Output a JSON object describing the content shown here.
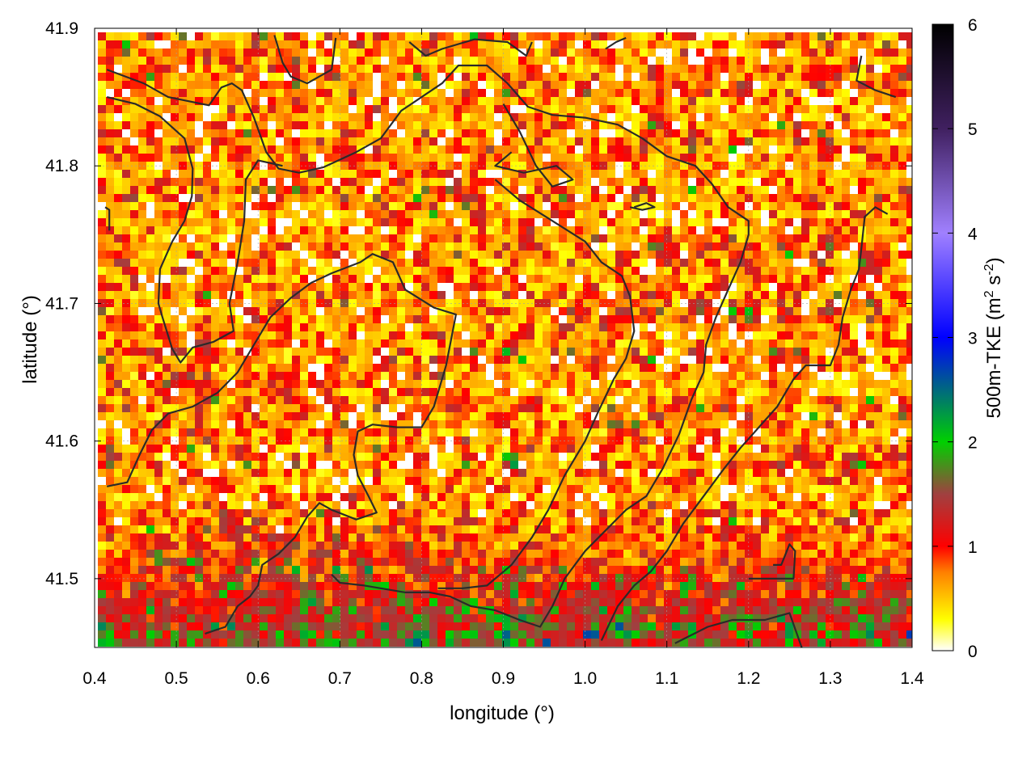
{
  "chart_data": {
    "type": "heatmap",
    "title": "",
    "xlabel": "longitude (°)",
    "ylabel": "latitude (°)",
    "xlim": [
      0.4,
      1.4
    ],
    "ylim": [
      41.45,
      41.9
    ],
    "x_ticks": [
      "0.4",
      "0.5",
      "0.6",
      "0.7",
      "0.8",
      "0.9",
      "1.0",
      "1.1",
      "1.2",
      "1.3",
      "1.4"
    ],
    "y_ticks": [
      "41.5",
      "41.6",
      "41.7",
      "41.8",
      "41.9"
    ],
    "grid": true,
    "colorbar": {
      "label_main": "500m-TKE (m",
      "label_sup1": "2",
      "label_mid": " s",
      "label_sup2": "-2",
      "label_end": ")",
      "range": [
        0,
        6
      ],
      "ticks": [
        "0",
        "1",
        "2",
        "3",
        "4",
        "5",
        "6"
      ],
      "palette": [
        {
          "v": 0.0,
          "c": "#ffffff"
        },
        {
          "v": 0.3,
          "c": "#ffff00"
        },
        {
          "v": 0.75,
          "c": "#ff8000"
        },
        {
          "v": 1.0,
          "c": "#ff0000"
        },
        {
          "v": 1.5,
          "c": "#a04040"
        },
        {
          "v": 2.0,
          "c": "#00d000"
        },
        {
          "v": 3.0,
          "c": "#0000ff"
        },
        {
          "v": 4.0,
          "c": "#a080ff"
        },
        {
          "v": 5.0,
          "c": "#402060"
        },
        {
          "v": 6.0,
          "c": "#000000"
        }
      ]
    },
    "contours": [
      [
        [
          0.415,
          41.87
        ],
        [
          0.46,
          41.86
        ],
        [
          0.49,
          41.85
        ],
        [
          0.54,
          41.844
        ],
        [
          0.555,
          41.857
        ],
        [
          0.568,
          41.86
        ],
        [
          0.58,
          41.855
        ],
        [
          0.595,
          41.835
        ],
        [
          0.61,
          41.81
        ],
        [
          0.625,
          41.798
        ],
        [
          0.65,
          41.795
        ],
        [
          0.68,
          41.799
        ],
        [
          0.72,
          41.81
        ],
        [
          0.75,
          41.82
        ],
        [
          0.775,
          41.84
        ],
        [
          0.8,
          41.85
        ],
        [
          0.825,
          41.86
        ],
        [
          0.845,
          41.873
        ],
        [
          0.88,
          41.873
        ],
        [
          0.905,
          41.86
        ],
        [
          0.93,
          41.843
        ],
        [
          0.96,
          41.837
        ],
        [
          1.0,
          41.835
        ],
        [
          1.04,
          41.83
        ],
        [
          1.07,
          41.82
        ],
        [
          1.1,
          41.807
        ],
        [
          1.135,
          41.8
        ],
        [
          1.155,
          41.787
        ],
        [
          1.175,
          41.77
        ],
        [
          1.2,
          41.76
        ],
        [
          1.2,
          41.75
        ],
        [
          1.19,
          41.73
        ],
        [
          1.175,
          41.71
        ],
        [
          1.16,
          41.69
        ],
        [
          1.148,
          41.67
        ],
        [
          1.145,
          41.65
        ],
        [
          1.13,
          41.63
        ],
        [
          1.115,
          41.605
        ],
        [
          1.095,
          41.58
        ],
        [
          1.075,
          41.56
        ],
        [
          1.05,
          41.55
        ],
        [
          1.025,
          41.535
        ],
        [
          1.0,
          41.52
        ],
        [
          0.975,
          41.5
        ],
        [
          0.96,
          41.48
        ],
        [
          0.945,
          41.465
        ],
        [
          0.92,
          41.47
        ],
        [
          0.89,
          41.477
        ],
        [
          0.86,
          41.48
        ],
        [
          0.835,
          41.487
        ],
        [
          0.81,
          41.49
        ],
        [
          0.78,
          41.49
        ],
        [
          0.73,
          41.495
        ],
        [
          0.7,
          41.497
        ],
        [
          0.69,
          41.503
        ]
      ],
      [
        [
          0.415,
          41.85
        ],
        [
          0.45,
          41.845
        ],
        [
          0.48,
          41.836
        ],
        [
          0.51,
          41.82
        ],
        [
          0.52,
          41.798
        ],
        [
          0.519,
          41.778
        ],
        [
          0.51,
          41.76
        ],
        [
          0.495,
          41.745
        ],
        [
          0.48,
          41.725
        ],
        [
          0.478,
          41.7
        ],
        [
          0.483,
          41.69
        ],
        [
          0.495,
          41.667
        ],
        [
          0.505,
          41.657
        ],
        [
          0.52,
          41.668
        ],
        [
          0.545,
          41.672
        ],
        [
          0.57,
          41.68
        ],
        [
          0.565,
          41.7
        ],
        [
          0.575,
          41.73
        ],
        [
          0.583,
          41.76
        ],
        [
          0.585,
          41.79
        ],
        [
          0.6,
          41.804
        ],
        [
          0.63,
          41.8
        ]
      ],
      [
        [
          0.415,
          41.567
        ],
        [
          0.44,
          41.57
        ],
        [
          0.455,
          41.59
        ],
        [
          0.47,
          41.608
        ],
        [
          0.49,
          41.62
        ],
        [
          0.52,
          41.625
        ],
        [
          0.55,
          41.635
        ],
        [
          0.575,
          41.65
        ],
        [
          0.595,
          41.67
        ],
        [
          0.615,
          41.69
        ],
        [
          0.64,
          41.704
        ],
        [
          0.665,
          41.715
        ],
        [
          0.69,
          41.722
        ],
        [
          0.725,
          41.73
        ],
        [
          0.74,
          41.736
        ],
        [
          0.765,
          41.73
        ],
        [
          0.78,
          41.71
        ],
        [
          0.815,
          41.697
        ],
        [
          0.842,
          41.692
        ],
        [
          0.83,
          41.655
        ],
        [
          0.815,
          41.625
        ],
        [
          0.8,
          41.61
        ],
        [
          0.77,
          41.61
        ],
        [
          0.74,
          41.612
        ],
        [
          0.722,
          41.607
        ],
        [
          0.717,
          41.59
        ],
        [
          0.722,
          41.575
        ],
        [
          0.735,
          41.56
        ],
        [
          0.745,
          41.548
        ],
        [
          0.72,
          41.543
        ],
        [
          0.69,
          41.55
        ],
        [
          0.675,
          41.555
        ],
        [
          0.66,
          41.545
        ],
        [
          0.645,
          41.53
        ],
        [
          0.625,
          41.518
        ],
        [
          0.605,
          41.51
        ],
        [
          0.6,
          41.495
        ],
        [
          0.59,
          41.487
        ],
        [
          0.575,
          41.48
        ],
        [
          0.56,
          41.465
        ],
        [
          0.535,
          41.46
        ]
      ],
      [
        [
          0.62,
          41.895
        ],
        [
          0.63,
          41.875
        ],
        [
          0.64,
          41.865
        ],
        [
          0.66,
          41.86
        ],
        [
          0.69,
          41.87
        ],
        [
          0.695,
          41.893
        ]
      ],
      [
        [
          0.785,
          41.89
        ],
        [
          0.805,
          41.88
        ],
        [
          0.825,
          41.885
        ],
        [
          0.865,
          41.892
        ],
        [
          0.905,
          41.89
        ],
        [
          0.928,
          41.88
        ],
        [
          0.935,
          41.89
        ]
      ],
      [
        [
          0.9,
          41.845
        ],
        [
          0.92,
          41.825
        ],
        [
          0.94,
          41.8
        ],
        [
          0.96,
          41.785
        ],
        [
          0.985,
          41.79
        ],
        [
          0.965,
          41.8
        ],
        [
          0.925,
          41.795
        ],
        [
          0.89,
          41.8
        ],
        [
          0.91,
          41.81
        ]
      ],
      [
        [
          0.89,
          41.79
        ],
        [
          0.92,
          41.775
        ],
        [
          0.96,
          41.76
        ],
        [
          1.0,
          41.745
        ],
        [
          1.02,
          41.73
        ],
        [
          1.045,
          41.72
        ],
        [
          1.055,
          41.705
        ],
        [
          1.06,
          41.68
        ],
        [
          1.05,
          41.66
        ],
        [
          1.035,
          41.645
        ],
        [
          1.015,
          41.62
        ],
        [
          1.0,
          41.6
        ],
        [
          0.975,
          41.575
        ],
        [
          0.955,
          41.55
        ],
        [
          0.935,
          41.53
        ],
        [
          0.91,
          41.51
        ],
        [
          0.88,
          41.495
        ],
        [
          0.85,
          41.493
        ],
        [
          0.82,
          41.493
        ]
      ],
      [
        [
          1.02,
          41.455
        ],
        [
          1.04,
          41.48
        ],
        [
          1.06,
          41.495
        ],
        [
          1.08,
          41.505
        ],
        [
          1.1,
          41.52
        ],
        [
          1.12,
          41.54
        ],
        [
          1.145,
          41.56
        ],
        [
          1.17,
          41.58
        ],
        [
          1.19,
          41.595
        ],
        [
          1.205,
          41.605
        ],
        [
          1.22,
          41.615
        ],
        [
          1.235,
          41.625
        ],
        [
          1.255,
          41.645
        ],
        [
          1.27,
          41.655
        ],
        [
          1.3,
          41.655
        ],
        [
          1.31,
          41.67
        ],
        [
          1.315,
          41.69
        ],
        [
          1.325,
          41.71
        ],
        [
          1.335,
          41.725
        ],
        [
          1.338,
          41.74
        ],
        [
          1.342,
          41.763
        ],
        [
          1.355,
          41.77
        ],
        [
          1.37,
          41.765
        ]
      ],
      [
        [
          1.11,
          41.453
        ],
        [
          1.15,
          41.465
        ],
        [
          1.18,
          41.47
        ],
        [
          1.22,
          41.47
        ],
        [
          1.25,
          41.475
        ],
        [
          1.265,
          41.45
        ]
      ],
      [
        [
          1.2,
          41.5
        ],
        [
          1.22,
          41.5
        ],
        [
          1.255,
          41.5
        ],
        [
          1.257,
          41.52
        ],
        [
          1.25,
          41.525
        ],
        [
          1.24,
          41.51
        ],
        [
          1.23,
          41.51
        ]
      ],
      [
        [
          1.338,
          41.88
        ],
        [
          1.332,
          41.862
        ],
        [
          1.355,
          41.855
        ],
        [
          1.38,
          41.85
        ]
      ],
      [
        [
          1.025,
          41.885
        ],
        [
          1.038,
          41.89
        ],
        [
          1.05,
          41.893
        ]
      ],
      [
        [
          1.06,
          41.77
        ],
        [
          1.075,
          41.773
        ],
        [
          1.085,
          41.77
        ],
        [
          1.07,
          41.768
        ],
        [
          1.055,
          41.77
        ]
      ],
      [
        [
          0.418,
          41.753
        ],
        [
          0.418,
          41.768
        ],
        [
          0.413,
          41.77
        ]
      ]
    ]
  }
}
